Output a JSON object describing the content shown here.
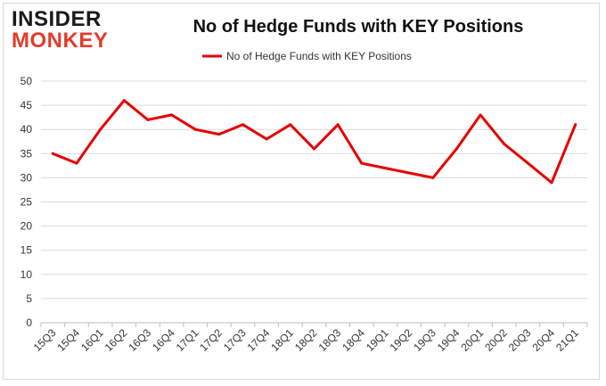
{
  "logo": {
    "line1": "INSIDER",
    "line2": "MONKEY"
  },
  "chart_data": {
    "type": "line",
    "title": "No of Hedge Funds with KEY Positions",
    "categories": [
      "15Q3",
      "15Q4",
      "16Q1",
      "16Q2",
      "16Q3",
      "16Q4",
      "17Q1",
      "17Q2",
      "17Q3",
      "17Q4",
      "18Q1",
      "18Q2",
      "18Q3",
      "18Q4",
      "19Q1",
      "19Q2",
      "19Q3",
      "19Q4",
      "20Q1",
      "20Q2",
      "20Q3",
      "20Q4",
      "21Q1"
    ],
    "series": [
      {
        "name": "No of Hedge Funds with KEY Positions",
        "color": "#e60000",
        "values": [
          35,
          33,
          40,
          46,
          42,
          43,
          40,
          39,
          41,
          38,
          41,
          36,
          41,
          33,
          32,
          31,
          30,
          36,
          43,
          37,
          33,
          29,
          41
        ]
      }
    ],
    "ylim": [
      0,
      50
    ],
    "yticks": [
      0,
      5,
      10,
      15,
      20,
      25,
      30,
      35,
      40,
      45,
      50
    ],
    "grid": true,
    "legend_position": "top-center",
    "xlabel": "",
    "ylabel": ""
  }
}
